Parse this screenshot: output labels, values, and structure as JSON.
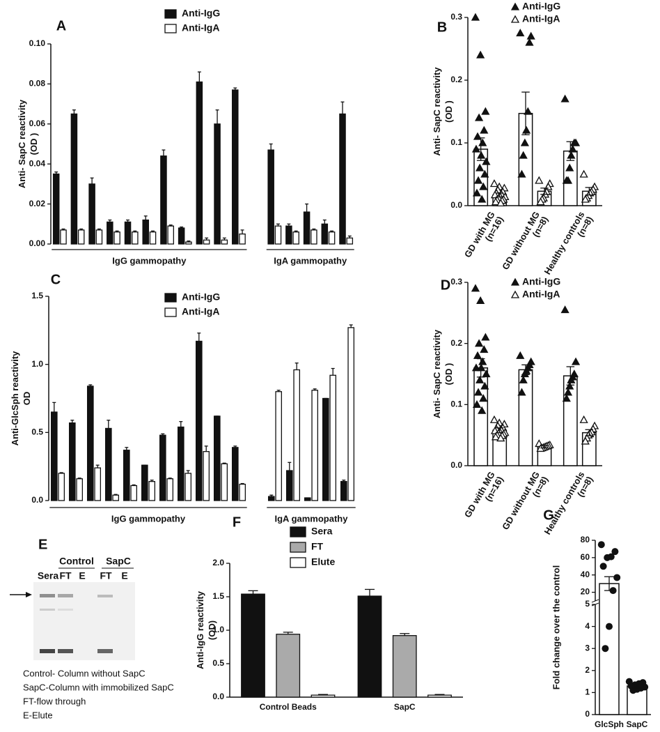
{
  "chart_data": [
    {
      "type": "bar",
      "title": "A",
      "ylabel": [
        "Anti- SapC reactivity",
        "(OD )"
      ],
      "ylim": [
        0,
        0.1
      ],
      "yticks": [
        {
          "value": 0,
          "label": "0.00"
        },
        {
          "value": 0.02,
          "label": "0.02"
        },
        {
          "value": 0.04,
          "label": "0.04"
        },
        {
          "value": 0.06,
          "label": "0.06"
        },
        {
          "value": 0.08,
          "label": "0.08"
        },
        {
          "value": 0.1,
          "label": "0.10"
        }
      ],
      "categories": [
        null,
        null,
        null,
        null,
        null,
        null,
        null,
        null,
        null,
        null,
        null,
        null,
        null,
        null,
        null,
        null
      ],
      "groups": [
        {
          "label": "IgG gammopathy",
          "size": 11
        },
        {
          "label": "IgA gammopathy",
          "size": 5
        }
      ],
      "series": [
        {
          "name": "Anti-IgG",
          "color": "#111111",
          "values": [
            0.035,
            0.065,
            0.03,
            0.011,
            0.011,
            0.012,
            0.044,
            0.008,
            0.081,
            0.06,
            0.077,
            0.047,
            0.009,
            0.016,
            0.01,
            0.065
          ],
          "errors": [
            0.001,
            0.002,
            0.003,
            0.001,
            0.001,
            0.002,
            0.003,
            0.0005,
            0.005,
            0.007,
            0.001,
            0.003,
            0.001,
            0.004,
            0.002,
            0.006
          ]
        },
        {
          "name": "Anti-IgA",
          "color": "#ffffff",
          "values": [
            0.007,
            0.007,
            0.007,
            0.006,
            0.006,
            0.006,
            0.009,
            0.001,
            0.002,
            0.002,
            0.005,
            0.009,
            0.006,
            0.007,
            0.006,
            0.003
          ],
          "errors": [
            0.0005,
            0.0005,
            0.0005,
            0.0005,
            0.0005,
            0.0005,
            0.0005,
            0.0005,
            0.001,
            0.001,
            0.002,
            0.001,
            0.0005,
            0.0005,
            0.0005,
            0.001
          ]
        }
      ]
    },
    {
      "type": "dotbar",
      "title": "B",
      "ylabel": [
        "Anti- SapC reactivity",
        "(OD )"
      ],
      "ylim": [
        0,
        0.3
      ],
      "yticks": [
        {
          "value": 0,
          "label": "0.0"
        },
        {
          "value": 0.1,
          "label": "0.1"
        },
        {
          "value": 0.2,
          "label": "0.2"
        },
        {
          "value": 0.3,
          "label": "0.3"
        }
      ],
      "categories": [
        [
          "GD with MG",
          "(n=16)"
        ],
        [
          "GD without MG",
          "(n=8)"
        ],
        [
          "Healthy controls",
          "(n=8)"
        ]
      ],
      "series": [
        {
          "name": "Anti-IgG",
          "marker": "filled-triangle",
          "color": "#111111",
          "values": [
            0.09,
            0.147,
            0.087
          ],
          "errors": [
            0.018,
            0.034,
            0.015
          ],
          "points": [
            [
              0.3,
              0.24,
              0.15,
              0.14,
              0.12,
              0.11,
              0.1,
              0.09,
              0.08,
              0.07,
              0.06,
              0.05,
              0.04,
              0.03,
              0.02,
              0.01
            ],
            [
              0.275,
              0.27,
              0.26,
              0.15,
              0.12,
              0.1,
              0.08,
              0.05
            ],
            [
              0.17,
              0.1,
              0.1,
              0.09,
              0.08,
              0.06,
              0.04,
              0.04
            ]
          ]
        },
        {
          "name": "Anti-IgA",
          "marker": "open-triangle",
          "color": "#111111",
          "values": [
            0.017,
            0.023,
            0.023
          ],
          "errors": [
            0.003,
            0.005,
            0.006
          ],
          "points": [
            [
              0.035,
              0.03,
              0.028,
              0.025,
              0.022,
              0.02,
              0.018,
              0.017,
              0.015,
              0.014,
              0.012,
              0.01,
              0.009,
              0.008,
              0.006,
              0.004
            ],
            [
              0.04,
              0.035,
              0.03,
              0.022,
              0.018,
              0.012,
              0.01,
              0.006
            ],
            [
              0.05,
              0.03,
              0.026,
              0.022,
              0.02,
              0.016,
              0.012,
              0.01
            ]
          ]
        }
      ]
    },
    {
      "type": "bar",
      "title": "C",
      "ylabel": [
        "Anti-GlcSph reactivity",
        "OD"
      ],
      "ylim": [
        0,
        1.5
      ],
      "yticks": [
        {
          "value": 0,
          "label": "0.0"
        },
        {
          "value": 0.5,
          "label": "0.5"
        },
        {
          "value": 1,
          "label": "1.0"
        },
        {
          "value": 1.5,
          "label": "1.5"
        }
      ],
      "categories": [
        null,
        null,
        null,
        null,
        null,
        null,
        null,
        null,
        null,
        null,
        null,
        null,
        null,
        null,
        null,
        null
      ],
      "groups": [
        {
          "label": "IgG gammopathy",
          "size": 11
        },
        {
          "label": "IgA gammopathy",
          "size": 5
        }
      ],
      "series": [
        {
          "name": "Anti-IgG",
          "color": "#111111",
          "values": [
            0.65,
            0.57,
            0.84,
            0.53,
            0.37,
            0.26,
            0.48,
            0.54,
            1.17,
            0.62,
            0.39,
            0.03,
            0.22,
            0.02,
            0.75,
            0.14
          ],
          "errors": [
            0.07,
            0.02,
            0.01,
            0.06,
            0.02,
            0,
            0.01,
            0.04,
            0.06,
            0,
            0.01,
            0.01,
            0.06,
            0,
            0,
            0.01
          ]
        },
        {
          "name": "Anti-IgA",
          "color": "#ffffff",
          "values": [
            0.2,
            0.16,
            0.24,
            0.04,
            0.11,
            0.14,
            0.16,
            0.2,
            0.36,
            0.27,
            0.12,
            0.8,
            0.96,
            0.81,
            0.92,
            1.27
          ],
          "errors": [
            0.005,
            0.005,
            0.02,
            0.005,
            0.005,
            0.01,
            0.005,
            0.02,
            0.04,
            0.005,
            0.005,
            0.01,
            0.05,
            0.01,
            0.05,
            0.02
          ]
        }
      ]
    },
    {
      "type": "dotbar",
      "title": "D",
      "ylabel": [
        "Anti- SapC reactivity",
        "(OD )"
      ],
      "ylim": [
        0,
        0.3
      ],
      "yticks": [
        {
          "value": 0,
          "label": "0.0"
        },
        {
          "value": 0.1,
          "label": "0.1"
        },
        {
          "value": 0.2,
          "label": "0.2"
        },
        {
          "value": 0.3,
          "label": "0.3"
        }
      ],
      "categories": [
        [
          "GD with MG",
          "(n=16)"
        ],
        [
          "GD without MG",
          "(n=8)"
        ],
        [
          "Healthy controls",
          "(n=8)"
        ]
      ],
      "series": [
        {
          "name": "Anti-IgG",
          "marker": "filled-triangle",
          "color": "#111111",
          "values": [
            0.16,
            0.157,
            0.147
          ],
          "errors": [
            0.015,
            0.008,
            0.015
          ],
          "points": [
            [
              0.29,
              0.27,
              0.21,
              0.2,
              0.19,
              0.18,
              0.17,
              0.16,
              0.16,
              0.15,
              0.14,
              0.13,
              0.12,
              0.11,
              0.1,
              0.09
            ],
            [
              0.18,
              0.17,
              0.165,
              0.16,
              0.155,
              0.15,
              0.14,
              0.12
            ],
            [
              0.255,
              0.17,
              0.15,
              0.145,
              0.14,
              0.13,
              0.12,
              0.11
            ]
          ]
        },
        {
          "name": "Anti-IgA",
          "marker": "open-triangle",
          "color": "#111111",
          "values": [
            0.058,
            0.031,
            0.054
          ],
          "errors": [
            0.004,
            0.002,
            0.005
          ],
          "points": [
            [
              0.075,
              0.07,
              0.068,
              0.065,
              0.062,
              0.06,
              0.058,
              0.057,
              0.055,
              0.054,
              0.053,
              0.052,
              0.05,
              0.049,
              0.047,
              0.045
            ],
            [
              0.036,
              0.034,
              0.033,
              0.032,
              0.031,
              0.03,
              0.029,
              0.028
            ],
            [
              0.075,
              0.065,
              0.06,
              0.055,
              0.052,
              0.05,
              0.045,
              0.04
            ]
          ]
        }
      ]
    },
    {
      "type": "bar",
      "title": "F",
      "ylabel": [
        "Anti-IgG reactivity",
        "(OD)"
      ],
      "ylim": [
        0,
        2
      ],
      "yticks": [
        {
          "value": 0,
          "label": "0.0"
        },
        {
          "value": 0.5,
          "label": "0.5"
        },
        {
          "value": 1,
          "label": "1.0"
        },
        {
          "value": 1.5,
          "label": "1.5"
        },
        {
          "value": 2,
          "label": "2.0"
        }
      ],
      "categories": [
        "Control Beads",
        "SapC"
      ],
      "series": [
        {
          "name": "Sera",
          "color": "#111111",
          "values": [
            1.54,
            1.51
          ],
          "errors": [
            0.05,
            0.1
          ]
        },
        {
          "name": "FT",
          "color": "#aaaaaa",
          "values": [
            0.94,
            0.92
          ],
          "errors": [
            0.03,
            0.03
          ]
        },
        {
          "name": "Elute",
          "color": "#ffffff",
          "values": [
            0.03,
            0.03
          ],
          "errors": [
            0.01,
            0.01
          ]
        }
      ]
    },
    {
      "type": "dotbar",
      "title": "G",
      "ylabel": [
        "Fold change over the control"
      ],
      "ylim": [
        0,
        80
      ],
      "ybreak": [
        5,
        10
      ],
      "yticks": [
        0,
        1,
        2,
        3,
        4,
        5,
        20,
        40,
        60,
        80
      ],
      "categories": [
        [
          "GlcSph"
        ],
        [
          "SapC"
        ]
      ],
      "series": [
        {
          "marker": "circle",
          "color": "#111111",
          "values": [
            30,
            1.3
          ],
          "errors": [
            8,
            0.1
          ],
          "points": [
            [
              75,
              67,
              61,
              60,
              50,
              37,
              22,
              4,
              3
            ],
            [
              1.5,
              1.45,
              1.4,
              1.35,
              1.3,
              1.25,
              1.2,
              1.15,
              1.1
            ]
          ]
        }
      ]
    }
  ],
  "gel": {
    "label": "E",
    "groups": [
      "Control",
      "SapC"
    ],
    "lanes": [
      "Sera",
      "FT",
      "E",
      "FT",
      "E"
    ],
    "caption": [
      "Control- Column without SapC",
      "SapC-Column with immobilized SapC",
      "FT-flow through",
      "E-Elute"
    ]
  }
}
